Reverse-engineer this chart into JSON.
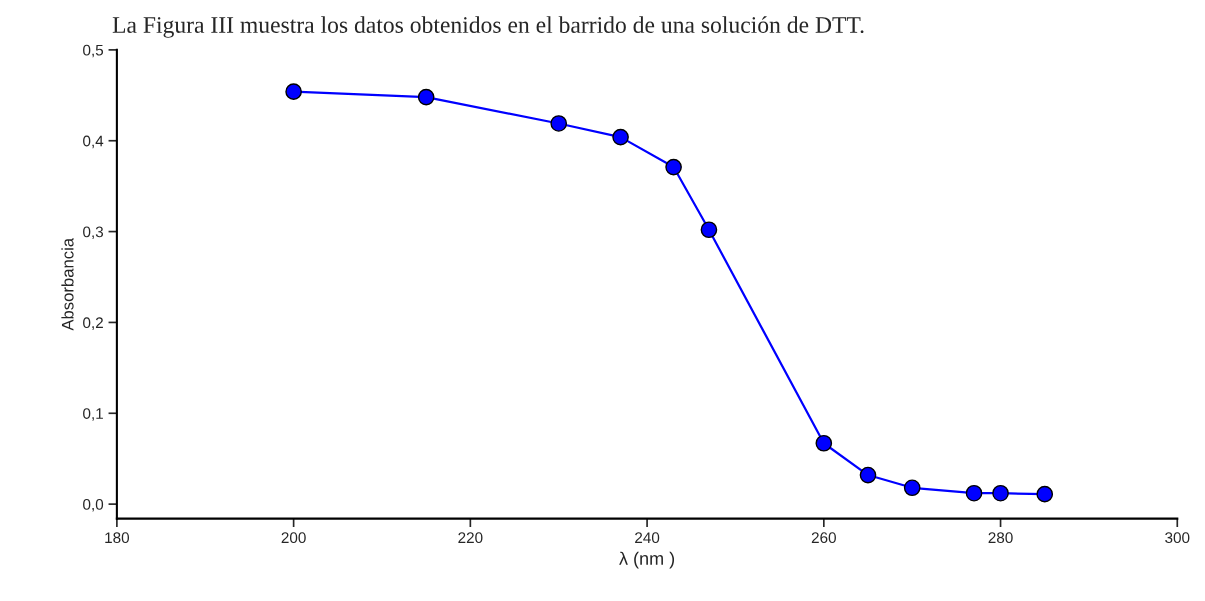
{
  "chart_data": {
    "type": "line",
    "title": "La Figura III muestra los datos obtenidos en el barrido de una solución de DTT.",
    "xlabel": "λ (nm )",
    "ylabel": "Absorbancia",
    "x": [
      200,
      215,
      230,
      237,
      243,
      247,
      260,
      265,
      270,
      277,
      280,
      285
    ],
    "series": [
      {
        "color": "#0000ff",
        "values": [
          0.454,
          0.448,
          0.419,
          0.404,
          0.371,
          0.302,
          0.067,
          0.032,
          0.018,
          0.012,
          0.012,
          0.011
        ]
      }
    ],
    "xlim": [
      180,
      300
    ],
    "xticks": [
      180,
      200,
      220,
      240,
      260,
      280,
      300
    ],
    "ylim": [
      -0.016,
      0.5
    ],
    "yticks": [
      {
        "value": 0.0,
        "label": "0,0"
      },
      {
        "value": 0.1,
        "label": "0,1"
      },
      {
        "value": 0.2,
        "label": "0,2"
      },
      {
        "value": 0.3,
        "label": "0,3"
      },
      {
        "value": 0.4,
        "label": "0,4"
      },
      {
        "value": 0.5,
        "label": "0,5"
      }
    ],
    "marker": "circle",
    "line_style": "solid",
    "grid": false,
    "legend": false
  }
}
